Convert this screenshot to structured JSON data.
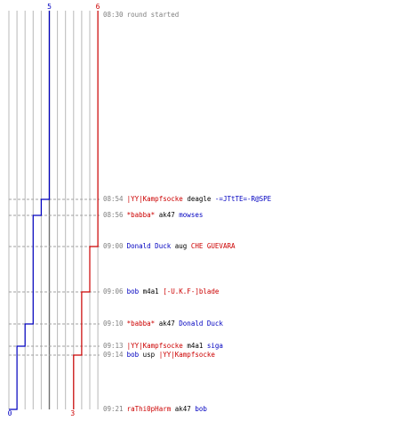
{
  "scoreboard": {
    "blue_start_score": "5",
    "red_start_score": "6",
    "blue_end_score": "0",
    "red_end_score": "3"
  },
  "colors": {
    "blue_team": "#0000c0",
    "red_team": "#cc0000",
    "timestamp": "#808080",
    "grid": "#b8b8b8",
    "center_line": "#707070",
    "weapon": "#000000"
  },
  "events": [
    {
      "time": "08:30",
      "text": "round started",
      "blue": 5,
      "red": 6
    },
    {
      "time": "08:54",
      "killer": "|YY|Kampfsocke",
      "killer_team": "red",
      "weapon": "deagle",
      "victim": "-=JTtTE=-R@SPE",
      "victim_team": "blue",
      "blue": 4,
      "red": 6
    },
    {
      "time": "08:56",
      "killer": "*babba*",
      "killer_team": "red",
      "weapon": "ak47",
      "victim": "mowses",
      "victim_team": "blue",
      "blue": 3,
      "red": 6
    },
    {
      "time": "09:00",
      "killer": "Donald Duck",
      "killer_team": "blue",
      "weapon": "aug",
      "victim": "CHE GUEVARA",
      "victim_team": "red",
      "blue": 3,
      "red": 5
    },
    {
      "time": "09:06",
      "killer": "bob",
      "killer_team": "blue",
      "weapon": "m4a1",
      "victim": "[-U.K.F-]blade",
      "victim_team": "red",
      "blue": 3,
      "red": 4
    },
    {
      "time": "09:10",
      "killer": "*babba*",
      "killer_team": "red",
      "weapon": "ak47",
      "victim": "Donald Duck",
      "victim_team": "blue",
      "blue": 2,
      "red": 4
    },
    {
      "time": "09:13",
      "killer": "|YY|Kampfsocke",
      "killer_team": "red",
      "weapon": "m4a1",
      "victim": "siga",
      "victim_team": "blue",
      "blue": 1,
      "red": 4
    },
    {
      "time": "09:14",
      "killer": "bob",
      "killer_team": "blue",
      "weapon": "usp",
      "victim": "|YY|Kampfsocke",
      "victim_team": "red",
      "blue": 1,
      "red": 3
    },
    {
      "time": "09:21",
      "killer": "raThi0pHarm",
      "killer_team": "red",
      "weapon": "ak47",
      "victim": "bob",
      "victim_team": "blue",
      "blue": 0,
      "red": 3
    }
  ]
}
